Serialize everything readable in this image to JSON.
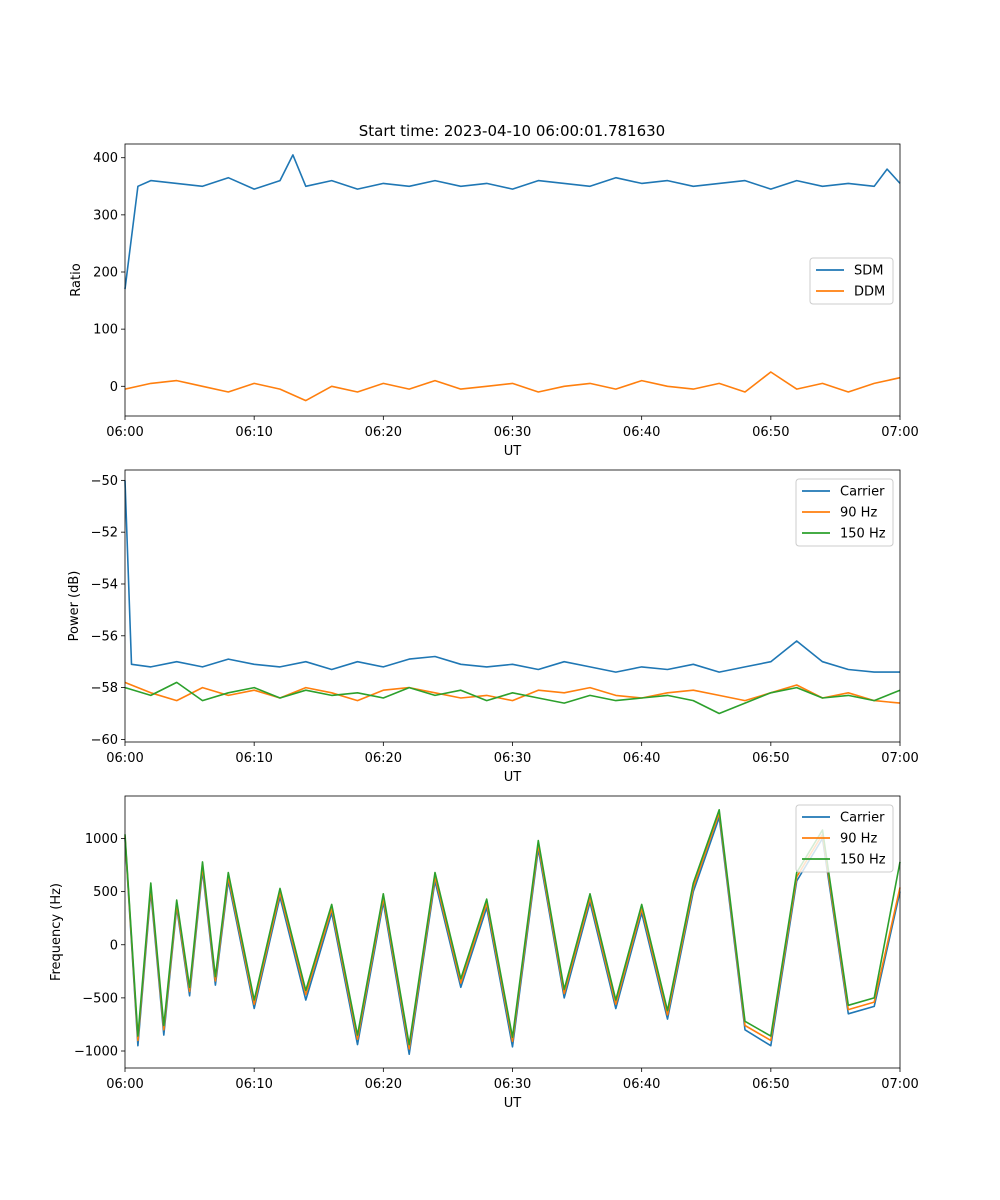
{
  "figure_title": "Start time: 2023-04-10 06:00:01.781630",
  "colors": {
    "blue": "#1f77b4",
    "orange": "#ff7f0e",
    "green": "#2ca02c"
  },
  "chart_data": [
    {
      "type": "line",
      "title": "Start time: 2023-04-10 06:00:01.781630",
      "xlabel": "UT",
      "ylabel": "Ratio",
      "x_ticks": [
        "06:00",
        "06:10",
        "06:20",
        "06:30",
        "06:40",
        "06:50",
        "07:00"
      ],
      "xlim": [
        "06:00",
        "07:00"
      ],
      "y_ticks": [
        0,
        100,
        200,
        300,
        400
      ],
      "ylim": [
        -52,
        424
      ],
      "legend": "center-right",
      "grid": false,
      "series": [
        {
          "name": "SDM",
          "color": "#1f77b4",
          "x": [
            "06:00",
            "06:01",
            "06:02",
            "06:04",
            "06:06",
            "06:08",
            "06:10",
            "06:12",
            "06:13",
            "06:14",
            "06:16",
            "06:18",
            "06:20",
            "06:22",
            "06:24",
            "06:26",
            "06:28",
            "06:30",
            "06:32",
            "06:34",
            "06:36",
            "06:38",
            "06:40",
            "06:42",
            "06:44",
            "06:46",
            "06:48",
            "06:50",
            "06:52",
            "06:54",
            "06:56",
            "06:58",
            "06:59",
            "07:00"
          ],
          "y": [
            170,
            350,
            360,
            355,
            350,
            365,
            345,
            360,
            405,
            350,
            360,
            345,
            355,
            350,
            360,
            350,
            355,
            345,
            360,
            355,
            350,
            365,
            355,
            360,
            350,
            355,
            360,
            345,
            360,
            350,
            355,
            350,
            380,
            355
          ]
        },
        {
          "name": "DDM",
          "color": "#ff7f0e",
          "x": [
            "06:00",
            "06:02",
            "06:04",
            "06:06",
            "06:08",
            "06:10",
            "06:12",
            "06:14",
            "06:16",
            "06:18",
            "06:20",
            "06:22",
            "06:24",
            "06:26",
            "06:28",
            "06:30",
            "06:32",
            "06:34",
            "06:36",
            "06:38",
            "06:40",
            "06:42",
            "06:44",
            "06:46",
            "06:48",
            "06:50",
            "06:52",
            "06:54",
            "06:56",
            "06:58",
            "07:00"
          ],
          "y": [
            -5,
            5,
            10,
            0,
            -10,
            5,
            -5,
            -25,
            0,
            -10,
            5,
            -5,
            10,
            -5,
            0,
            5,
            -10,
            0,
            5,
            -5,
            10,
            0,
            -5,
            5,
            -10,
            25,
            -5,
            5,
            -10,
            5,
            15
          ]
        }
      ]
    },
    {
      "type": "line",
      "title": "",
      "xlabel": "UT",
      "ylabel": "Power (dB)",
      "x_ticks": [
        "06:00",
        "06:10",
        "06:20",
        "06:30",
        "06:40",
        "06:50",
        "07:00"
      ],
      "xlim": [
        "06:00",
        "07:00"
      ],
      "y_ticks": [
        -60,
        -58,
        -56,
        -54,
        -52,
        -50
      ],
      "ylim": [
        -60.1,
        -49.6
      ],
      "legend": "top-right",
      "grid": false,
      "series": [
        {
          "name": "Carrier",
          "color": "#1f77b4",
          "x": [
            "06:00",
            "06:00.5",
            "06:02",
            "06:04",
            "06:06",
            "06:08",
            "06:10",
            "06:12",
            "06:14",
            "06:16",
            "06:18",
            "06:20",
            "06:22",
            "06:24",
            "06:26",
            "06:28",
            "06:30",
            "06:32",
            "06:34",
            "06:36",
            "06:38",
            "06:40",
            "06:42",
            "06:44",
            "06:46",
            "06:48",
            "06:50",
            "06:52",
            "06:54",
            "06:56",
            "06:58",
            "07:00"
          ],
          "y": [
            -50,
            -57.1,
            -57.2,
            -57.0,
            -57.2,
            -56.9,
            -57.1,
            -57.2,
            -57.0,
            -57.3,
            -57.0,
            -57.2,
            -56.9,
            -56.8,
            -57.1,
            -57.2,
            -57.1,
            -57.3,
            -57.0,
            -57.2,
            -57.4,
            -57.2,
            -57.3,
            -57.1,
            -57.4,
            -57.2,
            -57.0,
            -56.2,
            -57.0,
            -57.3,
            -57.4,
            -57.4
          ]
        },
        {
          "name": "90 Hz",
          "color": "#ff7f0e",
          "x": [
            "06:00",
            "06:02",
            "06:04",
            "06:06",
            "06:08",
            "06:10",
            "06:12",
            "06:14",
            "06:16",
            "06:18",
            "06:20",
            "06:22",
            "06:24",
            "06:26",
            "06:28",
            "06:30",
            "06:32",
            "06:34",
            "06:36",
            "06:38",
            "06:40",
            "06:42",
            "06:44",
            "06:46",
            "06:48",
            "06:50",
            "06:52",
            "06:54",
            "06:56",
            "06:58",
            "07:00"
          ],
          "y": [
            -57.8,
            -58.2,
            -58.5,
            -58.0,
            -58.3,
            -58.1,
            -58.4,
            -58.0,
            -58.2,
            -58.5,
            -58.1,
            -58.0,
            -58.2,
            -58.4,
            -58.3,
            -58.5,
            -58.1,
            -58.2,
            -58.0,
            -58.3,
            -58.4,
            -58.2,
            -58.1,
            -58.3,
            -58.5,
            -58.2,
            -57.9,
            -58.4,
            -58.2,
            -58.5,
            -58.6
          ]
        },
        {
          "name": "150 Hz",
          "color": "#2ca02c",
          "x": [
            "06:00",
            "06:02",
            "06:04",
            "06:06",
            "06:08",
            "06:10",
            "06:12",
            "06:14",
            "06:16",
            "06:18",
            "06:20",
            "06:22",
            "06:24",
            "06:26",
            "06:28",
            "06:30",
            "06:32",
            "06:34",
            "06:36",
            "06:38",
            "06:40",
            "06:42",
            "06:44",
            "06:46",
            "06:48",
            "06:50",
            "06:52",
            "06:54",
            "06:56",
            "06:58",
            "07:00"
          ],
          "y": [
            -58.0,
            -58.3,
            -57.8,
            -58.5,
            -58.2,
            -58.0,
            -58.4,
            -58.1,
            -58.3,
            -58.2,
            -58.4,
            -58.0,
            -58.3,
            -58.1,
            -58.5,
            -58.2,
            -58.4,
            -58.6,
            -58.3,
            -58.5,
            -58.4,
            -58.3,
            -58.5,
            -59.0,
            -58.6,
            -58.2,
            -58.0,
            -58.4,
            -58.3,
            -58.5,
            -58.1
          ]
        }
      ]
    },
    {
      "type": "line",
      "title": "",
      "xlabel": "UT",
      "ylabel": "Frequency (Hz)",
      "x_ticks": [
        "06:00",
        "06:10",
        "06:20",
        "06:30",
        "06:40",
        "06:50",
        "07:00"
      ],
      "xlim": [
        "06:00",
        "07:00"
      ],
      "y_ticks": [
        -1000,
        -500,
        0,
        500,
        1000
      ],
      "ylim": [
        -1160,
        1400
      ],
      "legend": "top-right",
      "grid": false,
      "series": [
        {
          "name": "Carrier",
          "color": "#1f77b4",
          "x": [
            "06:00",
            "06:01",
            "06:02",
            "06:03",
            "06:04",
            "06:05",
            "06:06",
            "06:07",
            "06:08",
            "06:10",
            "06:12",
            "06:14",
            "06:16",
            "06:18",
            "06:20",
            "06:22",
            "06:24",
            "06:26",
            "06:28",
            "06:30",
            "06:32",
            "06:34",
            "06:36",
            "06:38",
            "06:40",
            "06:42",
            "06:44",
            "06:46",
            "06:48",
            "06:50",
            "06:52",
            "06:54",
            "06:56",
            "06:58",
            "07:00"
          ],
          "y": [
            1000,
            -950,
            500,
            -850,
            350,
            -480,
            700,
            -380,
            600,
            -600,
            450,
            -520,
            300,
            -940,
            400,
            -1030,
            600,
            -400,
            350,
            -960,
            900,
            -500,
            400,
            -600,
            300,
            -700,
            500,
            1200,
            -800,
            -950,
            600,
            1000,
            -650,
            -580,
            500
          ]
        },
        {
          "name": "90 Hz",
          "color": "#ff7f0e",
          "x": [
            "06:00",
            "06:01",
            "06:02",
            "06:03",
            "06:04",
            "06:05",
            "06:06",
            "06:07",
            "06:08",
            "06:10",
            "06:12",
            "06:14",
            "06:16",
            "06:18",
            "06:20",
            "06:22",
            "06:24",
            "06:26",
            "06:28",
            "06:30",
            "06:32",
            "06:34",
            "06:36",
            "06:38",
            "06:40",
            "06:42",
            "06:44",
            "06:46",
            "06:48",
            "06:50",
            "06:52",
            "06:54",
            "06:56",
            "06:58",
            "07:00"
          ],
          "y": [
            1020,
            -900,
            540,
            -800,
            380,
            -440,
            740,
            -340,
            640,
            -560,
            490,
            -470,
            340,
            -890,
            440,
            -980,
            640,
            -360,
            390,
            -910,
            940,
            -460,
            440,
            -560,
            340,
            -660,
            540,
            1240,
            -760,
            -900,
            640,
            1040,
            -610,
            -540,
            540
          ]
        },
        {
          "name": "150 Hz",
          "color": "#2ca02c",
          "x": [
            "06:00",
            "06:01",
            "06:02",
            "06:03",
            "06:04",
            "06:05",
            "06:06",
            "06:07",
            "06:08",
            "06:10",
            "06:12",
            "06:14",
            "06:16",
            "06:18",
            "06:20",
            "06:22",
            "06:24",
            "06:26",
            "06:28",
            "06:30",
            "06:32",
            "06:34",
            "06:36",
            "06:38",
            "06:40",
            "06:42",
            "06:44",
            "06:46",
            "06:48",
            "06:50",
            "06:52",
            "06:54",
            "06:56",
            "06:58",
            "07:00"
          ],
          "y": [
            1040,
            -860,
            580,
            -760,
            420,
            -400,
            780,
            -300,
            680,
            -520,
            530,
            -430,
            380,
            -850,
            480,
            -940,
            680,
            -320,
            430,
            -870,
            980,
            -420,
            480,
            -520,
            380,
            -620,
            580,
            1270,
            -720,
            -860,
            680,
            1080,
            -570,
            -500,
            780
          ]
        }
      ]
    }
  ]
}
